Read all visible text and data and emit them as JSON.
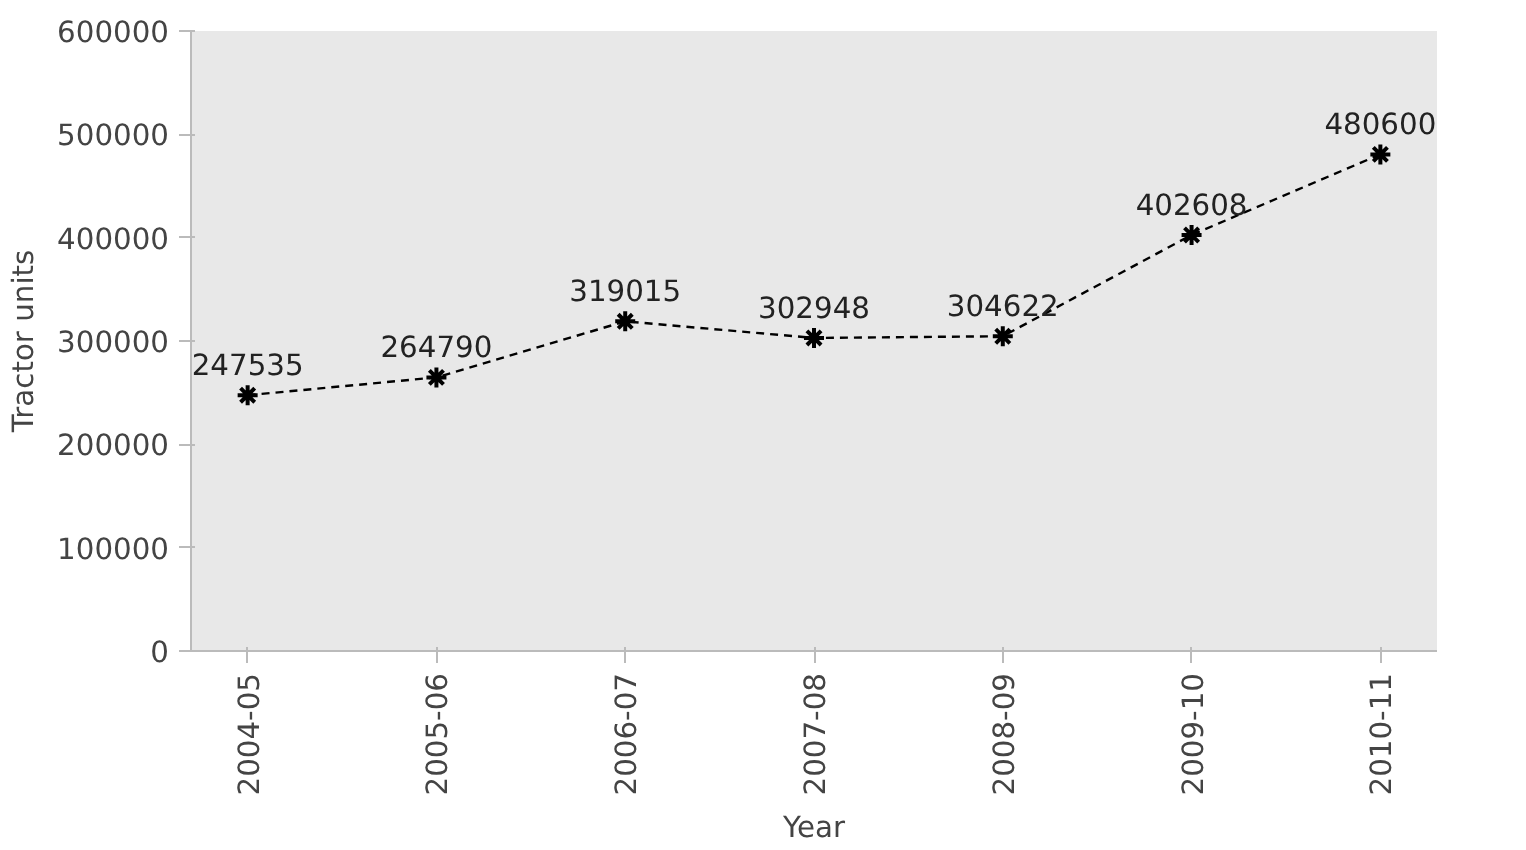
{
  "chart_data": {
    "type": "line",
    "xlabel": "Year",
    "ylabel": "Tractor units",
    "categories": [
      "2004-05",
      "2005-06",
      "2006-07",
      "2007-08",
      "2008-09",
      "2009-10",
      "2010-11"
    ],
    "series": [
      {
        "color": "#000000",
        "values": [
          247535,
          264790,
          319015,
          302948,
          304622,
          402608,
          480600
        ]
      }
    ],
    "ylim": [
      0,
      600000
    ],
    "yticks": [
      0,
      100000,
      200000,
      300000,
      400000,
      500000,
      600000
    ],
    "marker": "cross",
    "line_style": "dashed",
    "data_labels": true
  }
}
